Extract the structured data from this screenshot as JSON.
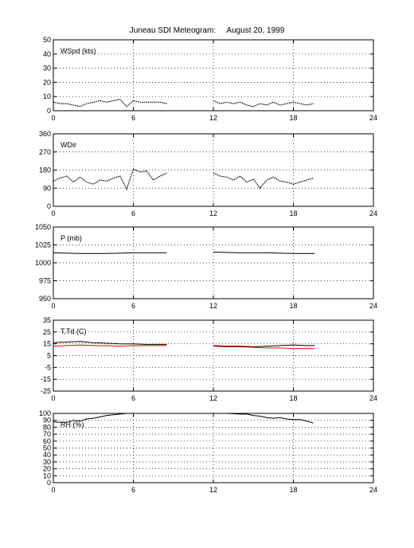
{
  "figure": {
    "title": "Juneau SDI Meteogram:     August 20, 1999"
  },
  "chart_data": [
    {
      "type": "line",
      "label": "WSpd (kts)",
      "ylim": [
        0,
        50
      ],
      "yticks": [
        0,
        10,
        20,
        30,
        40,
        50
      ],
      "xlim": [
        0,
        24
      ],
      "xticks": [
        0,
        6,
        12,
        18,
        24
      ],
      "grid": true,
      "series": [
        {
          "color": "#000000",
          "style": "dotted",
          "segments": [
            {
              "x": [
                0,
                0.5,
                1,
                1.5,
                2,
                2.5,
                3,
                3.5,
                4,
                4.5,
                5,
                5.5,
                6,
                6.5,
                7,
                7.5,
                8,
                8.5
              ],
              "y": [
                6,
                5,
                5,
                4,
                3,
                5,
                6,
                7,
                6,
                7,
                8,
                3,
                7,
                6,
                6,
                6,
                6,
                5
              ]
            },
            {
              "x": [
                12,
                12.5,
                13,
                13.5,
                14,
                14.5,
                15,
                15.5,
                16,
                16.5,
                17,
                17.5,
                18,
                18.5,
                19,
                19.5
              ],
              "y": [
                7,
                5,
                6,
                5,
                6,
                4,
                3,
                5,
                4,
                6,
                4,
                5,
                6,
                5,
                4,
                5
              ]
            }
          ]
        }
      ]
    },
    {
      "type": "line",
      "label": "WDir",
      "ylim": [
        0,
        360
      ],
      "yticks": [
        0,
        90,
        180,
        270,
        360
      ],
      "xlim": [
        0,
        24
      ],
      "xticks": [
        0,
        6,
        12,
        18,
        24
      ],
      "grid": true,
      "series": [
        {
          "color": "#000000",
          "style": "dotted",
          "segments": [
            {
              "x": [
                0,
                0.5,
                1,
                1.5,
                2,
                2.5,
                3,
                3.5,
                4,
                4.5,
                5,
                5.5,
                6,
                6.5,
                7,
                7.5,
                8,
                8.5
              ],
              "y": [
                125,
                140,
                150,
                120,
                145,
                120,
                110,
                130,
                125,
                140,
                150,
                85,
                185,
                170,
                175,
                130,
                150,
                165
              ]
            },
            {
              "x": [
                12,
                12.5,
                13,
                13.5,
                14,
                14.5,
                15,
                15.5,
                16,
                16.5,
                17,
                17.5,
                18,
                18.5,
                19,
                19.5
              ],
              "y": [
                165,
                150,
                145,
                130,
                150,
                120,
                135,
                90,
                130,
                145,
                125,
                120,
                110,
                120,
                130,
                140
              ]
            }
          ]
        }
      ]
    },
    {
      "type": "line",
      "label": "P (mb)",
      "ylim": [
        950,
        1050
      ],
      "yticks": [
        950,
        975,
        1000,
        1025,
        1050
      ],
      "xlim": [
        0,
        24
      ],
      "xticks": [
        0,
        6,
        12,
        18,
        24
      ],
      "grid": true,
      "series": [
        {
          "color": "#000000",
          "style": "solid",
          "segments": [
            {
              "x": [
                0,
                2,
                4,
                6,
                8.5
              ],
              "y": [
                1014,
                1013,
                1013,
                1014,
                1014
              ]
            },
            {
              "x": [
                12,
                14,
                16,
                18,
                19.6
              ],
              "y": [
                1015,
                1014,
                1014,
                1013,
                1013
              ]
            }
          ]
        }
      ]
    },
    {
      "type": "line",
      "label": "T,Td (C)",
      "ylim": [
        -25,
        35
      ],
      "yticks": [
        -25,
        -15,
        -5,
        5,
        15,
        25,
        35
      ],
      "xlim": [
        0,
        24
      ],
      "xticks": [
        0,
        6,
        12,
        18,
        24
      ],
      "grid": true,
      "series": [
        {
          "color": "#000000",
          "style": "solid",
          "segments": [
            {
              "x": [
                0,
                1,
                2,
                3,
                4,
                5,
                6,
                7,
                8.5
              ],
              "y": [
                16,
                16.5,
                17,
                16,
                15.5,
                15,
                15,
                14.5,
                14.5
              ]
            },
            {
              "x": [
                12,
                13,
                14,
                15,
                16,
                17,
                18,
                19,
                19.6
              ],
              "y": [
                13.5,
                13,
                13,
                12.5,
                13,
                13.5,
                14,
                13.5,
                13.5
              ]
            }
          ]
        },
        {
          "color": "#ff0000",
          "style": "solid",
          "segments": [
            {
              "x": [
                0,
                1,
                2,
                3,
                4,
                5,
                6,
                7,
                8.5
              ],
              "y": [
                13,
                13.5,
                14,
                13.5,
                13.5,
                13,
                13.5,
                13.5,
                13.5
              ]
            },
            {
              "x": [
                12,
                13,
                14,
                15,
                16,
                17,
                18,
                19,
                19.6
              ],
              "y": [
                13,
                12.5,
                12.5,
                12,
                11.5,
                11.5,
                11,
                11,
                11
              ]
            }
          ]
        }
      ]
    },
    {
      "type": "line",
      "label": "RH (%)",
      "ylim": [
        0,
        100
      ],
      "yticks": [
        0,
        10,
        20,
        30,
        40,
        50,
        60,
        70,
        80,
        90,
        100
      ],
      "xlim": [
        0,
        24
      ],
      "xticks": [
        0,
        6,
        12,
        18,
        24
      ],
      "grid": true,
      "series": [
        {
          "color": "#000000",
          "style": "solid",
          "segments": [
            {
              "x": [
                0,
                0.5,
                1,
                1.5,
                2,
                2.5,
                3,
                3.5,
                4,
                4.5,
                5,
                5.5,
                6
              ],
              "y": [
                88,
                87,
                87,
                90,
                89,
                92,
                93,
                95,
                97,
                98,
                99,
                100,
                100
              ]
            },
            {
              "x": [
                12,
                13,
                14,
                14.5,
                15,
                15.5,
                16,
                16.5,
                17,
                17.5,
                18,
                18.5,
                19,
                19.5
              ],
              "y": [
                100,
                100,
                99,
                99,
                97,
                96,
                94,
                93,
                94,
                92,
                91,
                91,
                89,
                86
              ]
            }
          ]
        }
      ]
    }
  ]
}
